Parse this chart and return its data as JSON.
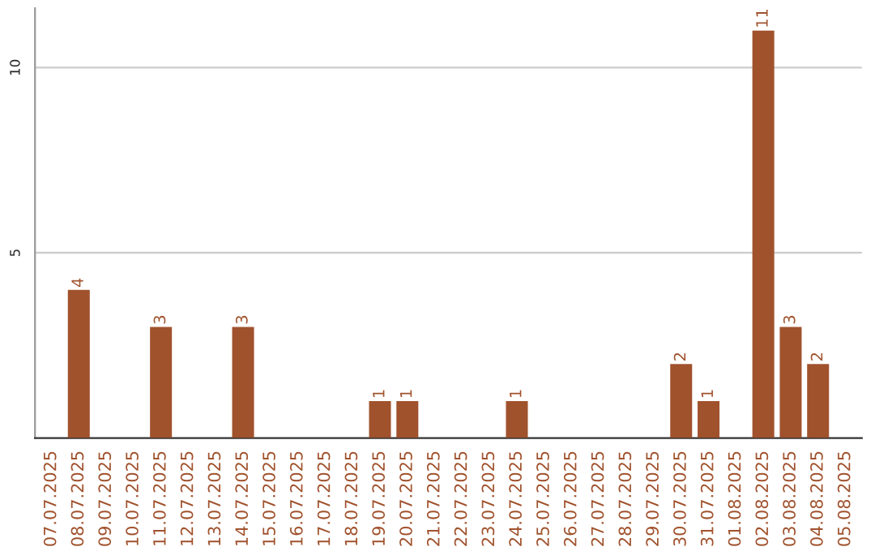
{
  "chart_data": {
    "type": "bar",
    "categories": [
      "07.07.2025",
      "08.07.2025",
      "09.07.2025",
      "10.07.2025",
      "11.07.2025",
      "12.07.2025",
      "13.07.2025",
      "14.07.2025",
      "15.07.2025",
      "16.07.2025",
      "17.07.2025",
      "18.07.2025",
      "19.07.2025",
      "20.07.2025",
      "21.07.2025",
      "22.07.2025",
      "23.07.2025",
      "24.07.2025",
      "25.07.2025",
      "26.07.2025",
      "27.07.2025",
      "28.07.2025",
      "29.07.2025",
      "30.07.2025",
      "31.07.2025",
      "01.08.2025",
      "02.08.2025",
      "03.08.2025",
      "04.08.2025",
      "05.08.2025"
    ],
    "values": [
      0,
      4,
      0,
      0,
      3,
      0,
      0,
      3,
      0,
      0,
      0,
      0,
      1,
      1,
      0,
      0,
      0,
      1,
      0,
      0,
      0,
      0,
      0,
      2,
      1,
      0,
      11,
      3,
      2,
      0
    ],
    "value_labels": [
      null,
      "4",
      null,
      null,
      "3",
      null,
      null,
      "3",
      null,
      null,
      null,
      null,
      "1",
      "1",
      null,
      null,
      null,
      "1",
      null,
      null,
      null,
      null,
      null,
      "2",
      "1",
      null,
      "11",
      "3",
      "2",
      null
    ],
    "color": "#a0522d",
    "ylim": [
      0,
      11.6
    ],
    "yticks": [
      5,
      10
    ],
    "grid": "y"
  }
}
